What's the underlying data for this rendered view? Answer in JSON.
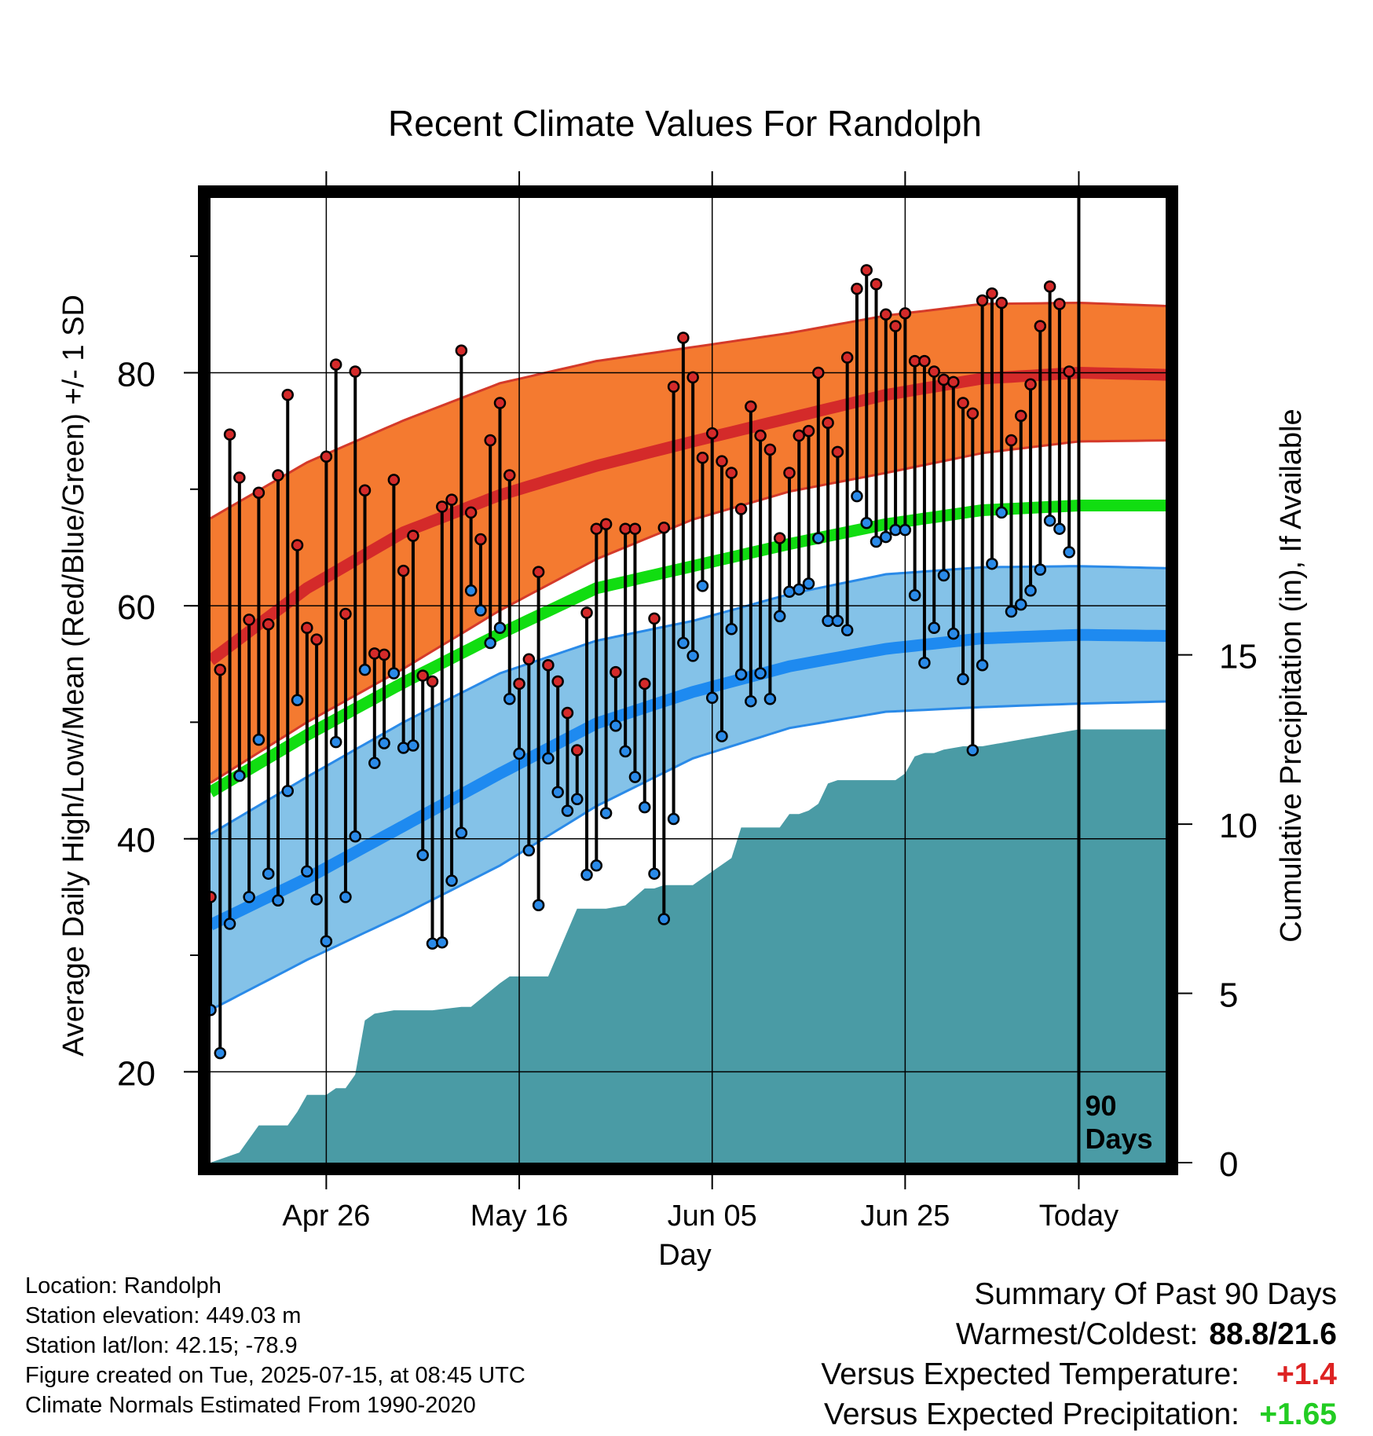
{
  "chart_data": {
    "type": "line",
    "title": "Recent Climate Values For Randolph",
    "xlabel": "Day",
    "ylabel": "Average Daily High/Low/Mean (Red/Blue/Green) +/- 1 SD",
    "ylabel_right": "Cumulative Precipitation (in), If Available",
    "x_ticks": [
      "Apr 26",
      "May 16",
      "Jun 05",
      "Jun 25",
      "Today"
    ],
    "y_ticks": [
      20,
      40,
      60,
      80
    ],
    "y2_ticks": [
      0,
      5,
      10,
      15
    ],
    "ylim": [
      12.2,
      95
    ],
    "y2lim": [
      0,
      28.5
    ],
    "today_label": "90 Days",
    "grid": true,
    "normals": {
      "day": [
        0,
        10,
        20,
        30,
        40,
        50,
        60,
        70,
        80,
        90,
        100
      ],
      "high_mean": [
        55.3,
        61.5,
        66.3,
        69.5,
        72.0,
        74.1,
        76.1,
        78.1,
        79.5,
        80.0,
        79.8
      ],
      "high_plus_sd": [
        67.5,
        72.3,
        75.9,
        79.1,
        81.0,
        82.2,
        83.4,
        84.9,
        85.9,
        86.0,
        85.7
      ],
      "high_minus_sd": [
        44.8,
        50.0,
        54.6,
        59.6,
        64.0,
        67.4,
        69.8,
        71.4,
        73.1,
        74.1,
        74.2
      ],
      "mean": [
        44.0,
        48.9,
        53.4,
        57.6,
        61.5,
        63.4,
        65.3,
        67.0,
        68.2,
        68.6,
        68.6
      ],
      "low_mean": [
        32.6,
        36.6,
        41.1,
        45.6,
        49.9,
        52.6,
        54.8,
        56.3,
        57.2,
        57.5,
        57.4
      ],
      "low_plus_sd": [
        40.4,
        45.3,
        50.0,
        54.2,
        57.0,
        58.7,
        61.0,
        62.7,
        63.3,
        63.4,
        63.2
      ],
      "low_minus_sd": [
        25.3,
        29.6,
        33.5,
        37.7,
        42.8,
        46.9,
        49.5,
        50.9,
        51.3,
        51.6,
        51.8
      ]
    },
    "series": [
      {
        "name": "High",
        "color": "#cc2222",
        "values": [
          35.0,
          54.5,
          74.7,
          71.0,
          58.8,
          69.7,
          58.4,
          71.2,
          78.1,
          65.2,
          58.1,
          57.1,
          72.8,
          80.7,
          59.3,
          80.1,
          69.9,
          55.9,
          55.8,
          70.8,
          63.0,
          66.0,
          54.0,
          53.5,
          68.5,
          69.1,
          81.9,
          68.0,
          65.7,
          74.2,
          77.4,
          71.2,
          53.3,
          55.4,
          62.9,
          54.9,
          53.5,
          50.8,
          47.6,
          59.4,
          66.6,
          67.0,
          54.3,
          66.6,
          66.6,
          53.3,
          58.9,
          66.7,
          78.8,
          83.0,
          79.6,
          72.7,
          74.8,
          72.4,
          71.4,
          68.3,
          77.1,
          74.6,
          73.4,
          65.8,
          71.4,
          74.6,
          75.0,
          80.0,
          75.7,
          73.2,
          81.3,
          87.2,
          88.8,
          87.6,
          85.0,
          84.0,
          85.1,
          81.0,
          81.0,
          80.1,
          79.4,
          79.2,
          77.4,
          76.5,
          86.2,
          86.8,
          86.0,
          74.2,
          76.3,
          79.0,
          84.0,
          87.4,
          85.9,
          80.1
        ],
        "lows": [
          25.3,
          21.6,
          32.7,
          45.4,
          35.0,
          48.5,
          37.0,
          34.7,
          44.1,
          51.9,
          37.2,
          34.8,
          31.2,
          48.3,
          35.0,
          40.2,
          54.5,
          46.5,
          48.2,
          54.2,
          47.8,
          48.0,
          38.6,
          31.0,
          31.1,
          36.4,
          40.5,
          61.3,
          59.6,
          56.8,
          58.1,
          52.0,
          47.3,
          39.0,
          34.3,
          46.9,
          44.0,
          42.4,
          43.4,
          36.9,
          37.7,
          42.2,
          49.7,
          47.5,
          45.3,
          42.7,
          37.0,
          33.1,
          41.7,
          56.8,
          55.7,
          61.7,
          52.1,
          48.8,
          58.0,
          54.1,
          51.8,
          54.2,
          52.0,
          59.1,
          61.2,
          61.4,
          61.9,
          65.8,
          58.7,
          58.7,
          57.9,
          69.4,
          67.1,
          65.5,
          65.9,
          66.5,
          66.5,
          60.9,
          55.1,
          58.1,
          62.6,
          57.6,
          53.7,
          47.6,
          54.9,
          63.6,
          68.0,
          59.5,
          60.1,
          61.3,
          63.1,
          67.3,
          66.6,
          64.6
        ]
      },
      {
        "name": "Cumulative Precipitation",
        "color": "#4a9ba5",
        "x": [
          0,
          3,
          5,
          8,
          9,
          10,
          11,
          12,
          13,
          14,
          15,
          16,
          17,
          19,
          20,
          22,
          23,
          26,
          27,
          30,
          31,
          32,
          35,
          38,
          39,
          40,
          41,
          43,
          45,
          46,
          47,
          48,
          49,
          50,
          52,
          54,
          55,
          57,
          59,
          60,
          61,
          62,
          63,
          64,
          65,
          66,
          67,
          68,
          69,
          70,
          71,
          72,
          73,
          74,
          75,
          76,
          78,
          80,
          82,
          84,
          86,
          88,
          90,
          99
        ],
        "values": [
          0.0,
          0.3,
          1.1,
          1.1,
          1.5,
          2.0,
          2.0,
          2.0,
          2.2,
          2.2,
          2.6,
          4.2,
          4.4,
          4.5,
          4.5,
          4.5,
          4.5,
          4.6,
          4.6,
          5.3,
          5.5,
          5.5,
          5.5,
          7.5,
          7.5,
          7.5,
          7.5,
          7.6,
          8.1,
          8.1,
          8.2,
          8.2,
          8.2,
          8.2,
          8.6,
          9.0,
          9.9,
          9.9,
          9.9,
          10.3,
          10.3,
          10.4,
          10.6,
          11.2,
          11.3,
          11.3,
          11.3,
          11.3,
          11.3,
          11.3,
          11.3,
          11.5,
          12.0,
          12.1,
          12.1,
          12.2,
          12.3,
          12.3,
          12.4,
          12.5,
          12.6,
          12.7,
          12.8,
          12.8
        ]
      }
    ]
  },
  "footer": {
    "location": "Location: Randolph",
    "elevation": "Station elevation: 449.03 m",
    "latlon": "Station lat/lon: 42.15; -78.9",
    "created": "Figure created on Tue, 2025-07-15, at 08:45 UTC",
    "normals": "Climate Normals Estimated From 1990-2020"
  },
  "summary": {
    "title": "Summary Of Past 90 Days",
    "warmest_label": "Warmest/Coldest:",
    "warmest_value": "88.8/21.6",
    "temp_label": "Versus Expected Temperature:",
    "temp_value": "+1.4",
    "temp_color": "#dd2222",
    "precip_label": "Versus Expected Precipitation:",
    "precip_value": "+1.65",
    "precip_color": "#22cc22"
  }
}
